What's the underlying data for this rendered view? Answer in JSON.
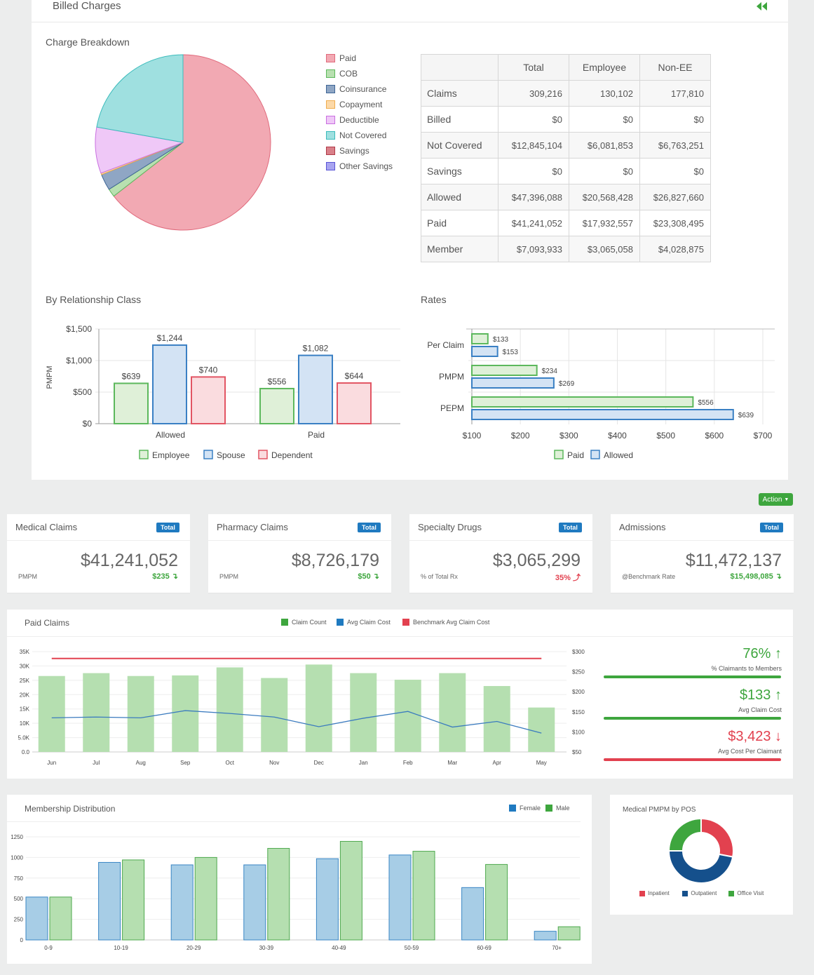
{
  "header": {
    "title": "Billed Charges",
    "collapse_icon": "double-chevron-left-icon"
  },
  "charge_breakdown": {
    "title": "Charge Breakdown",
    "legend": [
      {
        "label": "Paid",
        "color": "#f2a9b3",
        "border": "#e06a7c"
      },
      {
        "label": "COB",
        "color": "#b8e0b0",
        "border": "#5cb85c"
      },
      {
        "label": "Coinsurance",
        "color": "#8fa6c4",
        "border": "#3e6596"
      },
      {
        "label": "Copayment",
        "color": "#fcd9a8",
        "border": "#f0ad4e"
      },
      {
        "label": "Deductible",
        "color": "#efc8f7",
        "border": "#c96fe0"
      },
      {
        "label": "Not Covered",
        "color": "#9fe0e0",
        "border": "#3cbcbc"
      },
      {
        "label": "Savings",
        "color": "#d98089",
        "border": "#b03a48"
      },
      {
        "label": "Other Savings",
        "color": "#a8a4f0",
        "border": "#5a55d6"
      }
    ],
    "table": {
      "headers": [
        "",
        "Total",
        "Employee",
        "Non-EE"
      ],
      "rows": [
        {
          "label": "Claims",
          "total": "309,216",
          "employee": "130,102",
          "non_ee": "177,810"
        },
        {
          "label": "Billed",
          "total": "$0",
          "employee": "$0",
          "non_ee": "$0"
        },
        {
          "label": "Not Covered",
          "total": "$12,845,104",
          "employee": "$6,081,853",
          "non_ee": "$6,763,251"
        },
        {
          "label": "Savings",
          "total": "$0",
          "employee": "$0",
          "non_ee": "$0"
        },
        {
          "label": "Allowed",
          "total": "$47,396,088",
          "employee": "$20,568,428",
          "non_ee": "$26,827,660"
        },
        {
          "label": "Paid",
          "total": "$41,241,052",
          "employee": "$17,932,557",
          "non_ee": "$23,308,495"
        },
        {
          "label": "Member",
          "total": "$7,093,933",
          "employee": "$3,065,058",
          "non_ee": "$4,028,875"
        }
      ]
    }
  },
  "relationship": {
    "title": "By Relationship Class"
  },
  "rates": {
    "title": "Rates"
  },
  "action_button": "Action",
  "kpis": [
    {
      "title": "Medical Claims",
      "badge": "Total",
      "value": "$41,241,052",
      "sub": "PMPM",
      "delta": "$235",
      "delta_color": "#3ea63e",
      "arrow": "down-arrow-icon"
    },
    {
      "title": "Pharmacy Claims",
      "badge": "Total",
      "value": "$8,726,179",
      "sub": "PMPM",
      "delta": "$50",
      "delta_color": "#3ea63e",
      "arrow": "down-arrow-icon"
    },
    {
      "title": "Specialty Drugs",
      "badge": "Total",
      "value": "$3,065,299",
      "sub": "% of Total Rx",
      "delta": "35%",
      "delta_color": "#e2414f",
      "arrow": "up-arrow-icon"
    },
    {
      "title": "Admissions",
      "badge": "Total",
      "value": "$11,472,137",
      "sub": "@Benchmark Rate",
      "delta": "$15,498,085",
      "delta_color": "#3ea63e",
      "arrow": "down-arrow-icon"
    }
  ],
  "paid_claims": {
    "title": "Paid Claims",
    "legend": [
      "Claim Count",
      "Avg Claim Cost",
      "Benchmark Avg Claim Cost"
    ],
    "stats": [
      {
        "value": "76%",
        "label": "% Claimants to Members",
        "color": "#3ea63e",
        "arrow": "up-arrow-icon"
      },
      {
        "value": "$133",
        "label": "Avg Claim Cost",
        "color": "#3ea63e",
        "arrow": "up-arrow-icon"
      },
      {
        "value": "$3,423",
        "label": "Avg Cost Per Claimant",
        "color": "#e2414f",
        "arrow": "down-arrow-icon"
      }
    ]
  },
  "membership": {
    "title": "Membership Distribution",
    "legend": [
      "Female",
      "Male"
    ]
  },
  "pos": {
    "title": "Medical PMPM by POS",
    "legend": [
      "Inpatient",
      "Outpatient",
      "Office Visit"
    ]
  },
  "chart_data": [
    {
      "type": "pie",
      "title": "Charge Breakdown",
      "labels": [
        "Paid",
        "COB",
        "Coinsurance",
        "Copayment",
        "Deductible",
        "Not Covered",
        "Savings",
        "Other Savings"
      ],
      "values": [
        64.5,
        1.5,
        3.0,
        0.3,
        8.5,
        22.2,
        0,
        0
      ]
    },
    {
      "type": "bar",
      "title": "By Relationship Class",
      "ylabel": "PMPM",
      "categories": [
        "Allowed",
        "Paid"
      ],
      "ylim": [
        0,
        1500
      ],
      "yticks": [
        "$0",
        "$500",
        "$1,000",
        "$1,500"
      ],
      "series": [
        {
          "name": "Employee",
          "values": [
            639,
            556
          ],
          "labels": [
            "$639",
            "$556"
          ]
        },
        {
          "name": "Spouse",
          "values": [
            1244,
            1082
          ],
          "labels": [
            "$1,244",
            "$1,082"
          ]
        },
        {
          "name": "Dependent",
          "values": [
            740,
            644
          ],
          "labels": [
            "$740",
            "$644"
          ]
        }
      ]
    },
    {
      "type": "bar",
      "orientation": "horizontal",
      "title": "Rates",
      "categories": [
        "Per Claim",
        "PMPM",
        "PEPM"
      ],
      "xlim": [
        100,
        700
      ],
      "xticks": [
        "$100",
        "$200",
        "$300",
        "$400",
        "$500",
        "$600",
        "$700"
      ],
      "series": [
        {
          "name": "Paid",
          "values": [
            133,
            234,
            556
          ],
          "labels": [
            "$133",
            "$234",
            "$556"
          ]
        },
        {
          "name": "Allowed",
          "values": [
            153,
            269,
            639
          ],
          "labels": [
            "$153",
            "$269",
            "$639"
          ]
        }
      ]
    },
    {
      "type": "bar",
      "title": "Paid Claims",
      "categories": [
        "Jun",
        "Jul",
        "Aug",
        "Sep",
        "Oct",
        "Nov",
        "Dec",
        "Jan",
        "Feb",
        "Mar",
        "Apr",
        "May"
      ],
      "y_left_ticks": [
        "0.0",
        "5.0K",
        "10K",
        "15K",
        "20K",
        "25K",
        "30K",
        "35K"
      ],
      "y_right_ticks": [
        "$50",
        "$100",
        "$150",
        "$200",
        "$250",
        "$300"
      ],
      "series": [
        {
          "name": "Claim Count",
          "type": "bar",
          "values": [
            26500,
            27500,
            26500,
            26700,
            29500,
            25800,
            30500,
            27500,
            25200,
            27500,
            23000,
            15500
          ]
        },
        {
          "name": "Avg Claim Cost",
          "type": "line",
          "values": [
            135,
            137,
            135,
            153,
            146,
            137,
            113,
            134,
            151,
            112,
            126,
            97
          ]
        },
        {
          "name": "Benchmark Avg Claim Cost",
          "type": "line",
          "values": [
            283,
            283,
            283,
            283,
            283,
            283,
            283,
            283,
            283,
            283,
            283,
            283
          ]
        }
      ]
    },
    {
      "type": "bar",
      "title": "Membership Distribution",
      "categories": [
        "0-9",
        "10-19",
        "20-29",
        "30-39",
        "40-49",
        "50-59",
        "60-69",
        "70+"
      ],
      "ylim": [
        0,
        1250
      ],
      "yticks": [
        "0",
        "250",
        "500",
        "750",
        "1000",
        "1250"
      ],
      "series": [
        {
          "name": "Female",
          "values": [
            520,
            940,
            910,
            910,
            985,
            1030,
            635,
            105
          ]
        },
        {
          "name": "Male",
          "values": [
            520,
            970,
            1000,
            1110,
            1195,
            1075,
            915,
            160
          ]
        }
      ]
    },
    {
      "type": "pie",
      "title": "Medical PMPM by POS",
      "labels": [
        "Inpatient",
        "Outpatient",
        "Office Visit"
      ],
      "values": [
        28,
        47,
        25
      ]
    }
  ]
}
